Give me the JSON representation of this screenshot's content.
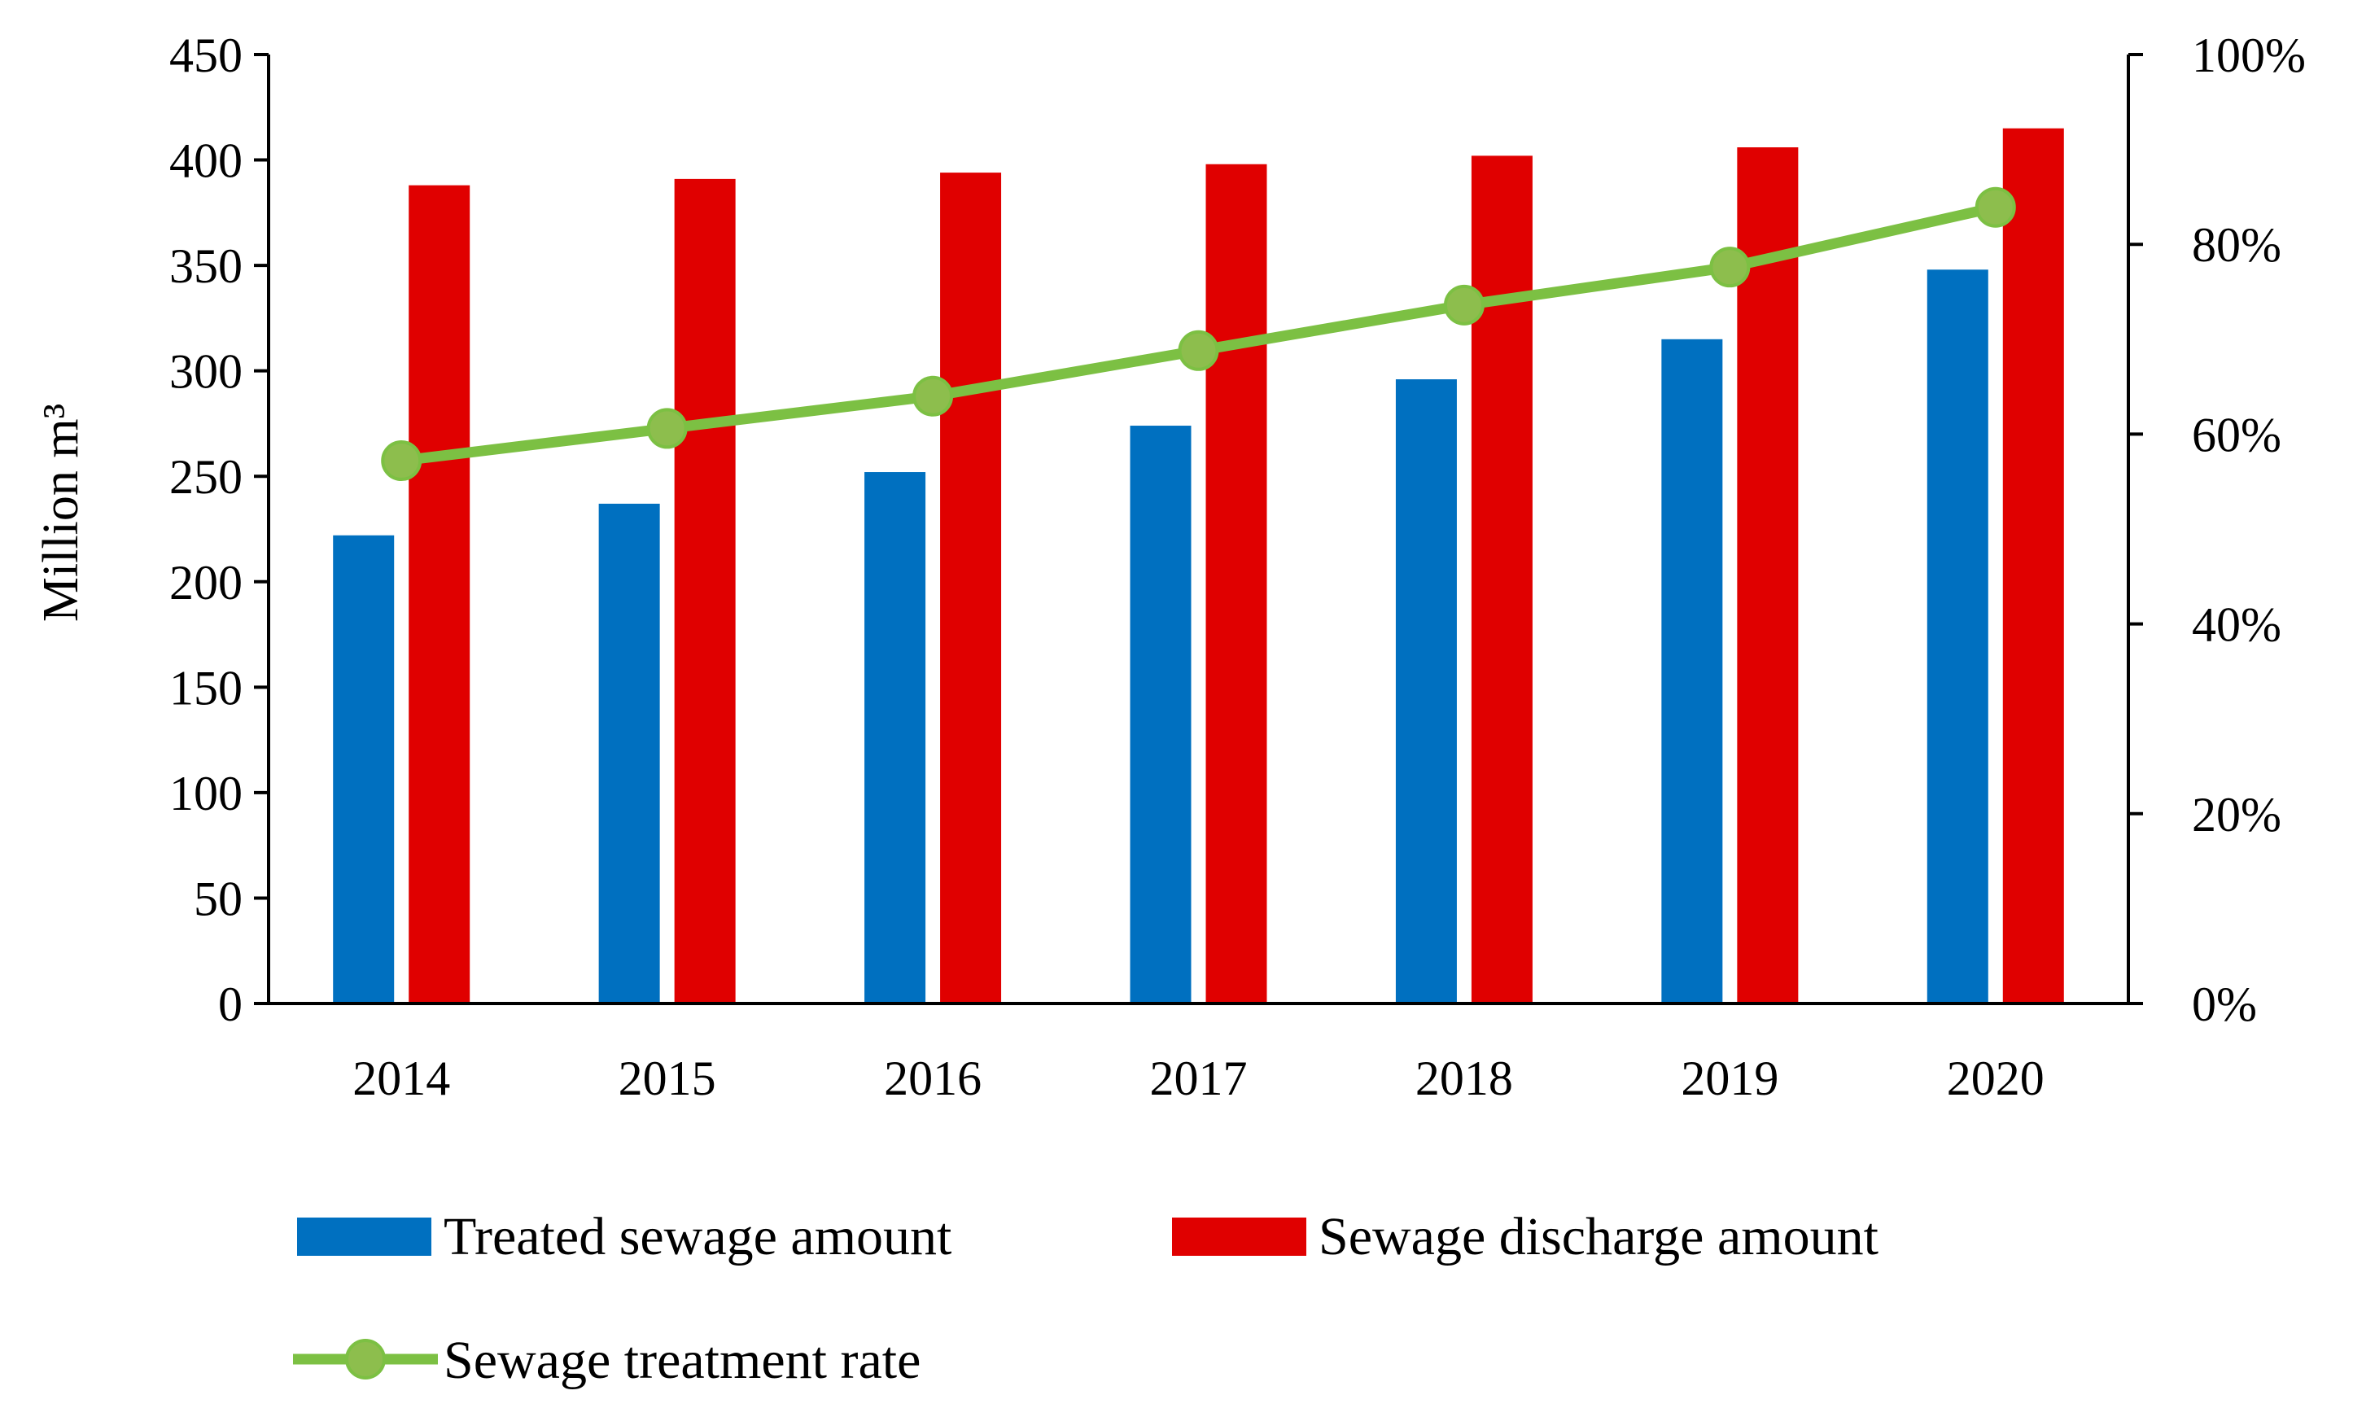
{
  "chart_data": {
    "type": "bar",
    "categories": [
      "2014",
      "2015",
      "2016",
      "2017",
      "2018",
      "2019",
      "2020"
    ],
    "ylabel": "Million m³",
    "ylim": [
      0,
      450
    ],
    "y_ticks": [
      0,
      50,
      100,
      150,
      200,
      250,
      300,
      350,
      400,
      450
    ],
    "y2lim": [
      0,
      1
    ],
    "y2_ticks": [
      "0%",
      "20%",
      "40%",
      "60%",
      "80%",
      "100%"
    ],
    "grid": false,
    "legend_position": "bottom",
    "series": [
      {
        "name": "Treated sewage amount",
        "type": "bar",
        "axis": "left",
        "color": "#0070C0",
        "values": [
          222,
          237,
          252,
          274,
          296,
          315,
          348
        ]
      },
      {
        "name": "Sewage discharge amount",
        "type": "bar",
        "axis": "left",
        "color": "#E00000",
        "values": [
          388,
          391,
          394,
          398,
          402,
          406,
          415
        ]
      },
      {
        "name": "Sewage treatment rate",
        "type": "line",
        "axis": "right",
        "color": "#7CC043",
        "marker_color": "#8DBE4D",
        "values": [
          0.572,
          0.606,
          0.64,
          0.688,
          0.736,
          0.776,
          0.839
        ]
      }
    ]
  }
}
